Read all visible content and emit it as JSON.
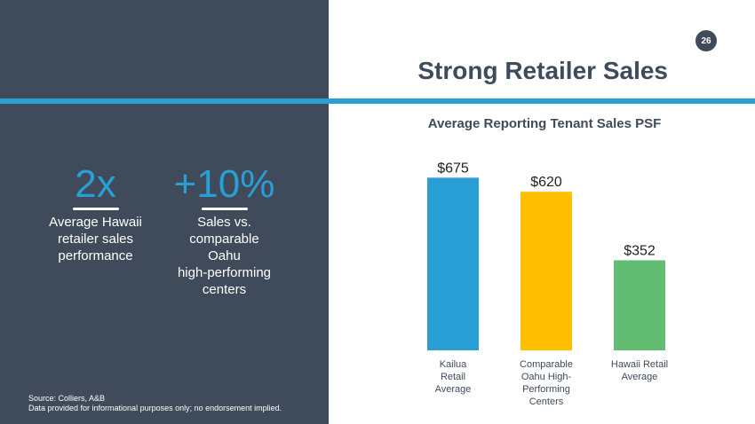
{
  "page": {
    "number": "26",
    "title": "Strong Retailer Sales"
  },
  "stats": [
    {
      "value": "2x",
      "label": [
        "Average Hawaii",
        "retailer sales",
        "performance"
      ]
    },
    {
      "value": "+10%",
      "label": [
        "Sales vs.",
        "comparable",
        "Oahu",
        "high-performing",
        "centers"
      ]
    }
  ],
  "source": {
    "line1": "Source: Colliers, A&B",
    "line2": "Data provided for informational purposes only; no endorsement implied."
  },
  "colors": {
    "panel": "#3f4b5a",
    "accent": "#2a9fd6",
    "bar1": "#2a9fd6",
    "bar2": "#fdbf00",
    "bar3": "#62bd72"
  },
  "chart_data": {
    "type": "bar",
    "title": "Average Reporting Tenant Sales PSF",
    "categories": [
      [
        "Kailua",
        "Retail",
        "Average"
      ],
      [
        "Comparable",
        "Oahu High-",
        "Performing",
        "Centers"
      ],
      [
        "Hawaii Retail",
        "Average"
      ]
    ],
    "values": [
      675,
      620,
      352
    ],
    "data_labels": [
      "$675",
      "$620",
      "$352"
    ],
    "bar_colors": [
      "#2a9fd6",
      "#fdbf00",
      "#62bd72"
    ],
    "ylim": [
      0,
      780
    ],
    "xlabel": "",
    "ylabel": ""
  }
}
